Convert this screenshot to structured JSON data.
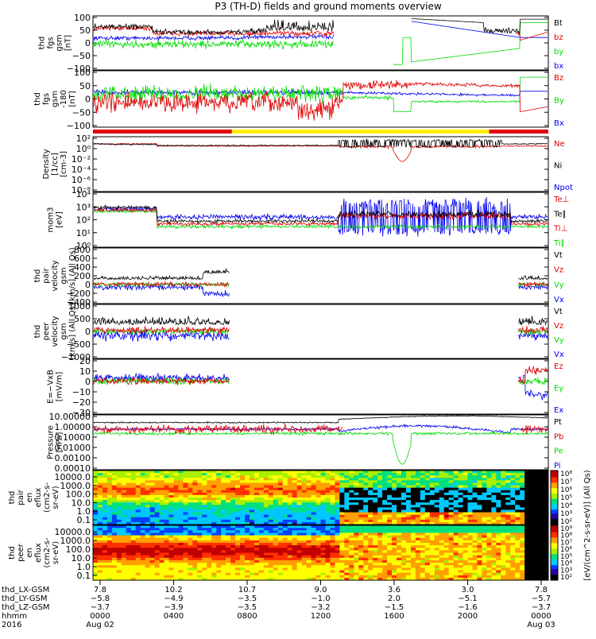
{
  "title": "P3 (TH-D) fields and ground moments overview",
  "colors": {
    "black": "#000000",
    "red": "#e00000",
    "green": "#00dd00",
    "blue": "#0000ee",
    "yellow": "#ffee00"
  },
  "panels": [
    {
      "id": "fgs",
      "ylabel": [
        "thd",
        "fgs",
        "gsm",
        "[nT]"
      ],
      "ticks": [
        "100",
        "50",
        "0",
        "−50",
        "−100"
      ],
      "ylim": [
        -100,
        100
      ],
      "scale": "linear",
      "legend": [
        {
          "label": "Bt",
          "color": "black"
        },
        {
          "label": "bz",
          "color": "red"
        },
        {
          "label": "by",
          "color": "green"
        },
        {
          "label": "bx",
          "color": "blue"
        }
      ]
    },
    {
      "id": "fgl",
      "ylabel": [
        "thd",
        "fgs",
        "gsm",
        "-180",
        "[nT]"
      ],
      "ticks": [
        "100",
        "50",
        "0",
        "−50",
        "−100"
      ],
      "ylim": [
        -120,
        100
      ],
      "scale": "linear",
      "legend": [
        {
          "label": "Bz",
          "color": "red"
        },
        {
          "label": "By",
          "color": "green"
        },
        {
          "label": "Bx",
          "color": "blue"
        }
      ]
    },
    {
      "id": "density",
      "ylabel": [
        "Density",
        "[1/cc]",
        "[cm-3]"
      ],
      "ticks": [
        "10²",
        "10⁰",
        "10⁻²",
        "10⁻⁴",
        "10⁻⁶",
        "10⁻⁸"
      ],
      "ylim": [
        -8,
        2
      ],
      "scale": "log",
      "legend": [
        {
          "label": "Ne",
          "color": "red"
        },
        {
          "label": "Ni",
          "color": "black"
        },
        {
          "label": "Npot",
          "color": "blue"
        }
      ]
    },
    {
      "id": "temp",
      "ylabel": [
        "mom3",
        "[eV]"
      ],
      "ticks": [
        "10⁴",
        "10³",
        "10²",
        "10¹",
        "10⁰"
      ],
      "ylim": [
        0,
        4
      ],
      "scale": "log",
      "legend": [
        {
          "label": "Te⊥",
          "color": "red"
        },
        {
          "label": "Te∥",
          "color": "black"
        },
        {
          "label": "Ti⊥",
          "color": "red"
        },
        {
          "label": "Ti∥",
          "color": "green"
        }
      ]
    },
    {
      "id": "pvel",
      "ylabel": [
        "thd",
        "pair",
        "velocity",
        "gsm",
        "[km/s] (All Qs)"
      ],
      "ticks": [
        "800",
        "600",
        "400",
        "200",
        "0",
        "−200",
        "−400"
      ],
      "ylim": [
        -400,
        800
      ],
      "scale": "linear",
      "legend": [
        {
          "label": "Vt",
          "color": "black"
        },
        {
          "label": "Vz",
          "color": "red"
        },
        {
          "label": "Vy",
          "color": "green"
        },
        {
          "label": "Vx",
          "color": "blue"
        }
      ]
    },
    {
      "id": "evel",
      "ylabel": [
        "thd",
        "peer",
        "velocity",
        "gsm",
        "[km/s] (All Qs)"
      ],
      "ticks": [
        "1000",
        "500",
        "0",
        "−500",
        "−1000"
      ],
      "ylim": [
        -1000,
        1000
      ],
      "scale": "linear",
      "legend": [
        {
          "label": "Vt",
          "color": "black"
        },
        {
          "label": "Vz",
          "color": "red"
        },
        {
          "label": "Vy",
          "color": "green"
        },
        {
          "label": "Vx",
          "color": "blue"
        }
      ]
    },
    {
      "id": "efield",
      "ylabel": [
        "E=−VxB",
        "[mV/m]"
      ],
      "ticks": [
        "20",
        "10",
        "0",
        "−10",
        "−20",
        "−30"
      ],
      "ylim": [
        -30,
        20
      ],
      "scale": "linear",
      "legend": [
        {
          "label": "Ez",
          "color": "red"
        },
        {
          "label": "Ey",
          "color": "green"
        },
        {
          "label": "Ex",
          "color": "blue"
        }
      ]
    },
    {
      "id": "pressure",
      "ylabel": [
        "Pressure",
        "[nPa]"
      ],
      "ticks": [
        "10.00000",
        "1.00000",
        "0.10000",
        "0.01000",
        "0.00100",
        "0.00010"
      ],
      "ylim": [
        -4,
        1
      ],
      "scale": "log",
      "legend": [
        {
          "label": "Pt",
          "color": "black"
        },
        {
          "label": "Pb",
          "color": "red"
        },
        {
          "label": "Pe",
          "color": "green"
        },
        {
          "label": "Pi",
          "color": "blue"
        }
      ]
    }
  ],
  "spectrograms": [
    {
      "id": "pair-eflux",
      "ylabel": [
        "thd",
        "pair",
        "en",
        "eflux",
        "(cm2-s-",
        "sr-eV)"
      ],
      "ticks": [
        "10000.0",
        "1000.0",
        "100.0",
        "10.0",
        "1.0",
        "0.1"
      ]
    },
    {
      "id": "peer-eflux",
      "ylabel": [
        "thd",
        "peer",
        "en",
        "eflux",
        "(cm2-s-",
        "sr-eV)"
      ],
      "ticks": [
        "10000.0",
        "1000.0",
        "100.0",
        "10.0",
        "1.0",
        "0.1"
      ]
    }
  ],
  "colorbar": {
    "label": "[eV/(cm^2-s-sr-eV)] (All Qs)",
    "ticks": [
      "10⁸",
      "10⁷",
      "10⁶",
      "10⁵",
      "10⁴",
      "10³",
      "10²"
    ]
  },
  "colorbar2": {
    "ticks": [
      "10⁹",
      "10⁸",
      "10⁷",
      "10⁶",
      "10⁵",
      "10⁴",
      "10³",
      "10²"
    ]
  },
  "region_bar": [
    {
      "from": 0,
      "to": 0.305,
      "color": "red"
    },
    {
      "from": 0.305,
      "to": 0.87,
      "color": "yellow"
    },
    {
      "from": 0.87,
      "to": 1,
      "color": "red"
    }
  ],
  "xaxis": {
    "rows": [
      {
        "label": "thd_LX-GSM",
        "values": [
          "7.8",
          "10.2",
          "10.7",
          "9.0",
          "3.6",
          "3.0",
          "7.8"
        ]
      },
      {
        "label": "thd_LY-GSM",
        "values": [
          "−5.8",
          "−4.9",
          "−3.5",
          "−1.0",
          "2.0",
          "−5.1",
          "−5.7"
        ]
      },
      {
        "label": "thd_LZ-GSM",
        "values": [
          "−3.7",
          "−3.9",
          "−3.5",
          "−3.2",
          "−1.5",
          "−1.6",
          "−3.7"
        ]
      },
      {
        "label": "hhmm",
        "values": [
          "0000",
          "0400",
          "0800",
          "1200",
          "1600",
          "2000",
          "0000"
        ]
      },
      {
        "label": "2016",
        "values": [
          "Aug 02",
          "",
          "",
          "",
          "",
          "",
          "Aug 03"
        ]
      }
    ]
  }
}
